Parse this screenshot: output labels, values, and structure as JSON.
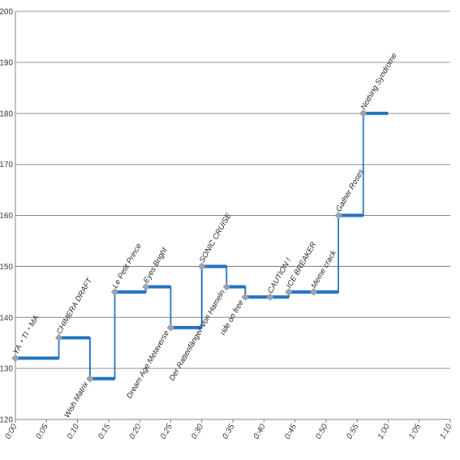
{
  "chart_data": {
    "type": "line",
    "style": "step",
    "title": "",
    "xlabel": "",
    "ylabel": "",
    "xlim": [
      "0:00",
      "1:10"
    ],
    "ylim": [
      120,
      200
    ],
    "grid": "horizontal",
    "legend": "none",
    "x_tick_labels": [
      "0:00",
      "0:05",
      "0:10",
      "0:15",
      "0:20",
      "0:25",
      "0:30",
      "0:35",
      "0:40",
      "0:45",
      "0:50",
      "0:55",
      "1:00",
      "1:05",
      "1:10"
    ],
    "y_tick_labels": [
      "120",
      "130",
      "140",
      "150",
      "160",
      "170",
      "180",
      "190",
      "200"
    ],
    "colors": {
      "line": "#1f6fbf",
      "marker": "#9aa5b1",
      "grid": "#8c8c8c",
      "axis": "#7a7a7a"
    },
    "series": [
      {
        "points": [
          {
            "x": "0:00",
            "y": 132,
            "label": "YA・TI・MA"
          },
          {
            "x": "0:07",
            "y": 136,
            "label": "CHIMERA DRAFT"
          },
          {
            "x": "0:12",
            "y": 128,
            "label": "Wish Matrix"
          },
          {
            "x": "0:16",
            "y": 145,
            "label": "Le Petit Prince"
          },
          {
            "x": "0:21",
            "y": 146,
            "label": "Eyes Bright"
          },
          {
            "x": "0:25",
            "y": 138,
            "label": "Dream Age Metaverse"
          },
          {
            "x": "0:30",
            "y": 150,
            "label": "SONIC CRUISE"
          },
          {
            "x": "0:34",
            "y": 146,
            "label": "Der Rattenfänger Von Hameln"
          },
          {
            "x": "0:37",
            "y": 144,
            "label": "ride on free"
          },
          {
            "x": "0:41",
            "y": 144,
            "label": "CAUTION !"
          },
          {
            "x": "0:44",
            "y": 145,
            "label": "ICE BREAKER"
          },
          {
            "x": "0:48",
            "y": 145,
            "label": "Meme crack"
          },
          {
            "x": "0:52",
            "y": 160,
            "label": "Gather Roses"
          },
          {
            "x": "0:56",
            "y": 180,
            "label": "Nothing Syndrome"
          }
        ],
        "end": {
          "x": "1:00",
          "y": 180
        }
      }
    ]
  }
}
